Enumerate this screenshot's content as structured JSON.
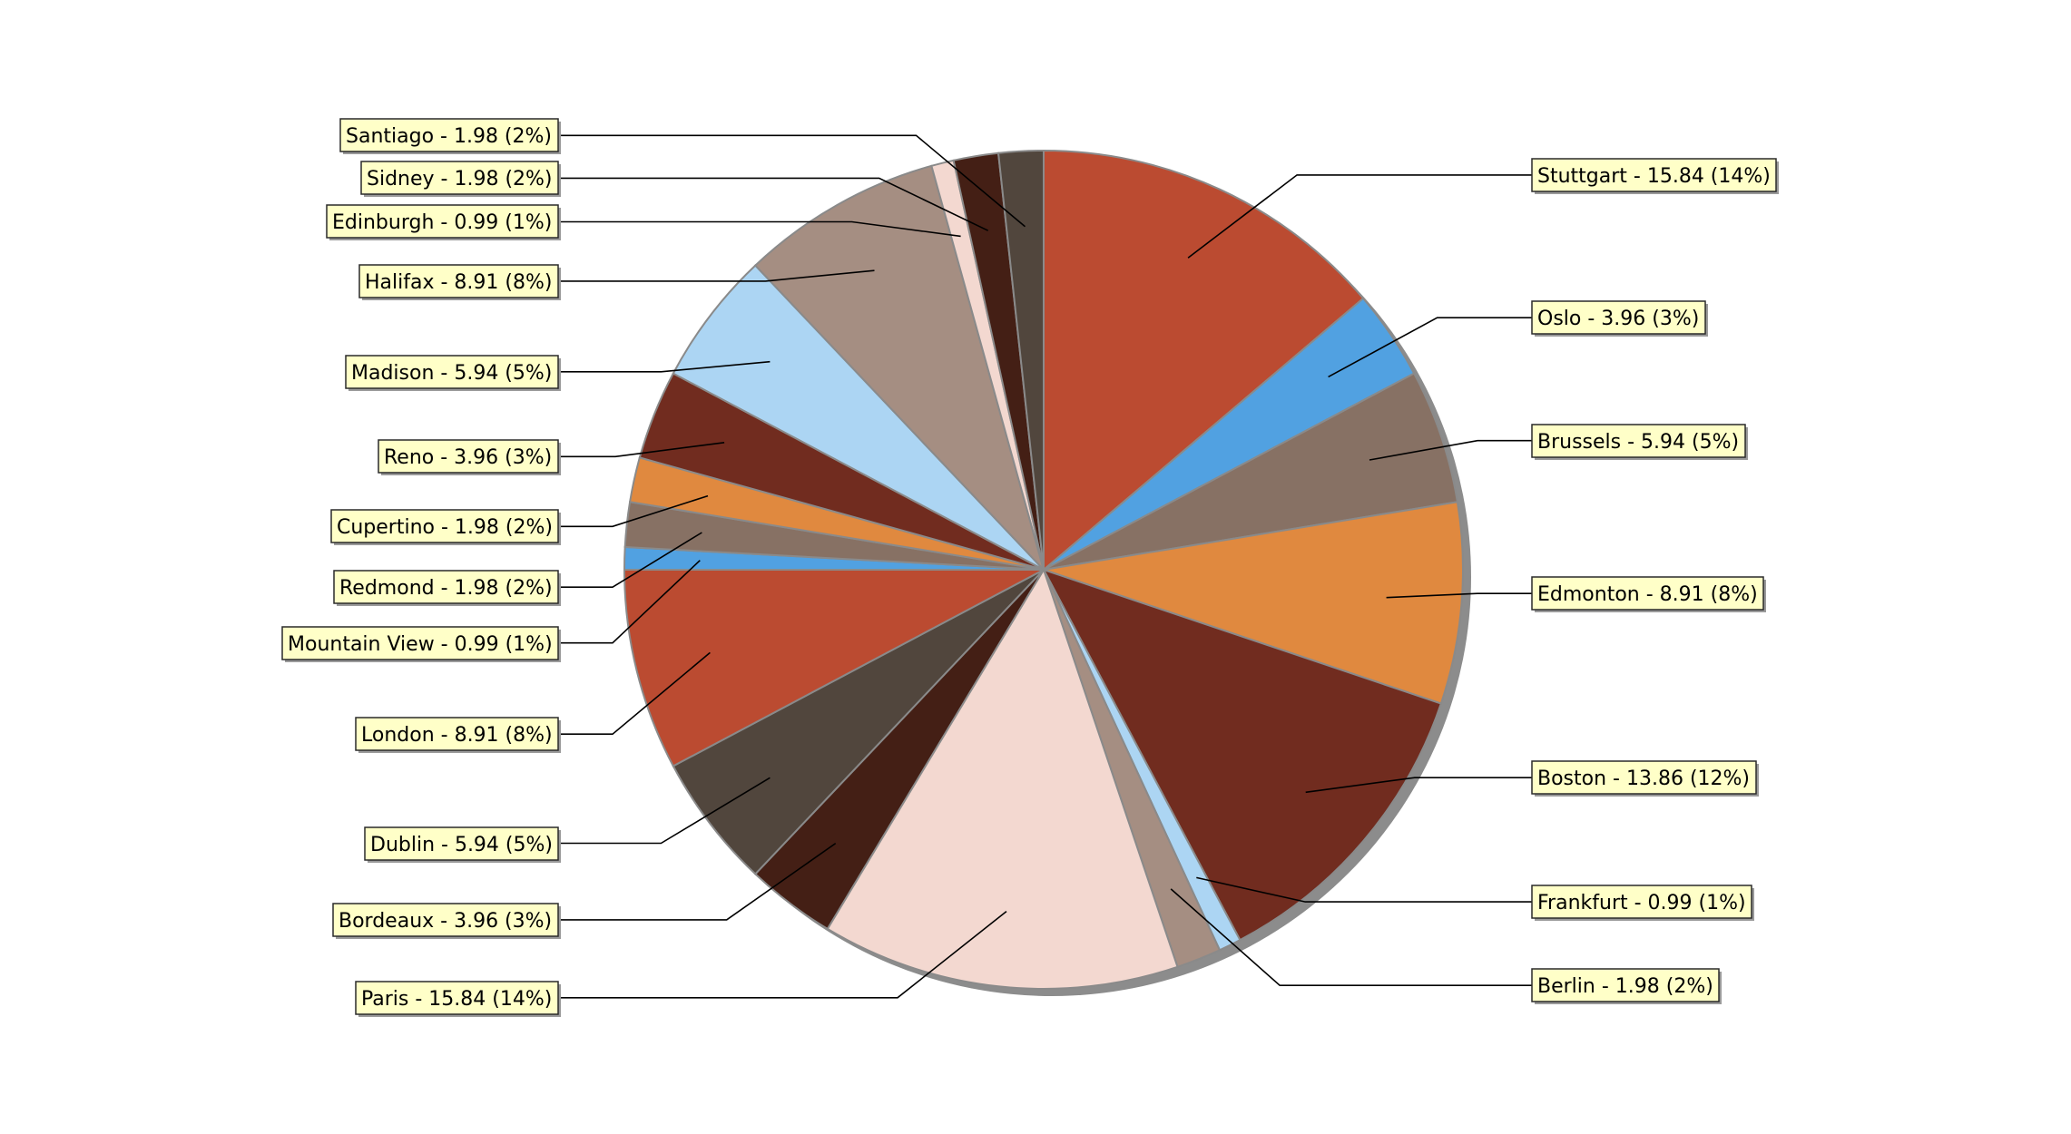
{
  "chart_data": {
    "type": "pie",
    "title": "",
    "start_angle_deg": 0,
    "direction": "clockwise",
    "label_format": "{name} - {value} ({percent})",
    "slices": [
      {
        "name": "Stuttgart",
        "value": 15.84,
        "value_label": "15.84",
        "percent_label": "14%",
        "color": "#bb4b31",
        "side": "right"
      },
      {
        "name": "Oslo",
        "value": 3.96,
        "value_label": "3.96",
        "percent_label": "3%",
        "color": "#51a1e1",
        "side": "right"
      },
      {
        "name": "Brussels",
        "value": 5.94,
        "value_label": "5.94",
        "percent_label": "5%",
        "color": "#877164",
        "side": "right"
      },
      {
        "name": "Edmonton",
        "value": 8.91,
        "value_label": "8.91",
        "percent_label": "8%",
        "color": "#e0893f",
        "side": "right"
      },
      {
        "name": "Boston",
        "value": 13.86,
        "value_label": "13.86",
        "percent_label": "12%",
        "color": "#712c1f",
        "side": "right"
      },
      {
        "name": "Frankfurt",
        "value": 0.99,
        "value_label": "0.99",
        "percent_label": "1%",
        "color": "#acd5f3",
        "side": "right"
      },
      {
        "name": "Berlin",
        "value": 1.98,
        "value_label": "1.98",
        "percent_label": "2%",
        "color": "#a58e82",
        "side": "right"
      },
      {
        "name": "Paris",
        "value": 15.84,
        "value_label": "15.84",
        "percent_label": "14%",
        "color": "#f3d8d0",
        "side": "left"
      },
      {
        "name": "Bordeaux",
        "value": 3.96,
        "value_label": "3.96",
        "percent_label": "3%",
        "color": "#441f15",
        "side": "left"
      },
      {
        "name": "Dublin",
        "value": 5.94,
        "value_label": "5.94",
        "percent_label": "5%",
        "color": "#51463d",
        "side": "left"
      },
      {
        "name": "London",
        "value": 8.91,
        "value_label": "8.91",
        "percent_label": "8%",
        "color": "#bb4b31",
        "side": "left"
      },
      {
        "name": "Mountain View",
        "value": 0.99,
        "value_label": "0.99",
        "percent_label": "1%",
        "color": "#51a1e1",
        "side": "left"
      },
      {
        "name": "Redmond",
        "value": 1.98,
        "value_label": "1.98",
        "percent_label": "2%",
        "color": "#877164",
        "side": "left"
      },
      {
        "name": "Cupertino",
        "value": 1.98,
        "value_label": "1.98",
        "percent_label": "2%",
        "color": "#e0893f",
        "side": "left"
      },
      {
        "name": "Reno",
        "value": 3.96,
        "value_label": "3.96",
        "percent_label": "3%",
        "color": "#712c1f",
        "side": "left"
      },
      {
        "name": "Madison",
        "value": 5.94,
        "value_label": "5.94",
        "percent_label": "5%",
        "color": "#acd5f3",
        "side": "left"
      },
      {
        "name": "Halifax",
        "value": 8.91,
        "value_label": "8.91",
        "percent_label": "8%",
        "color": "#a58e82",
        "side": "left"
      },
      {
        "name": "Edinburgh ",
        "value": 0.99,
        "value_label": "0.99",
        "percent_label": "1%",
        "color": "#f3d8d0",
        "side": "left"
      },
      {
        "name": "Sidney",
        "value": 1.98,
        "value_label": "1.98",
        "percent_label": "2%",
        "color": "#441f15",
        "side": "left"
      },
      {
        "name": "Santiago",
        "value": 1.98,
        "value_label": "1.98",
        "percent_label": "2%",
        "color": "#51463d",
        "side": "left"
      }
    ]
  }
}
